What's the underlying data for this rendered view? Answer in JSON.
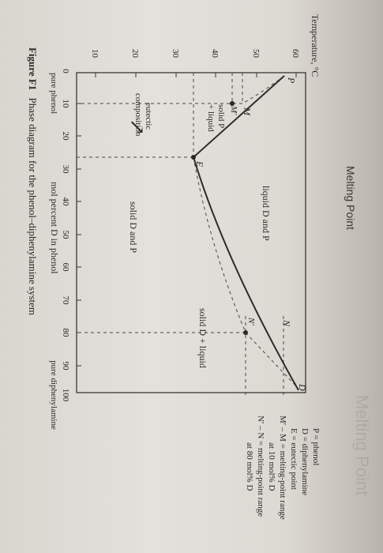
{
  "header": {
    "title": "Melting Point",
    "ghost_text": "Melting Point"
  },
  "diagram": {
    "y_axis_label": "Temperature, °C",
    "y_ticks": [
      "60",
      "50",
      "40",
      "30",
      "20",
      "10"
    ],
    "x_ticks": [
      "0",
      "10",
      "20",
      "30",
      "40",
      "50",
      "60",
      "70",
      "80",
      "90",
      "100"
    ],
    "x_axis_label": "mol percent D in phenol",
    "x_left_caption": "pure phenol",
    "x_right_caption": "pure diphenylamine",
    "regions": {
      "liquid": "liquid D and P",
      "solid_d_liquid": "solid D + liquid",
      "solid_dp": "solid D and P",
      "solid_p_line1": "solid P",
      "solid_p_line2": "+ liquid",
      "eutectic_line1": "eutectic",
      "eutectic_line2": "composition"
    },
    "points": {
      "P": "P",
      "D": "D",
      "E": "E",
      "M": "M",
      "M_prime": "M′",
      "N": "N",
      "N_prime": "N′"
    }
  },
  "legend": {
    "l1": "P = phenol",
    "l2": "D = diphenylamine",
    "l3": "E = eutectic point",
    "l4": "M′ – M = melting-point range",
    "l5": "at 10 mol% D",
    "l6": "N′ – N = melting-point range",
    "l7": "at 80 mol% D"
  },
  "caption": {
    "label": "Figure F1",
    "text": "Phase diagram for the phenol–diphenylamine system"
  }
}
